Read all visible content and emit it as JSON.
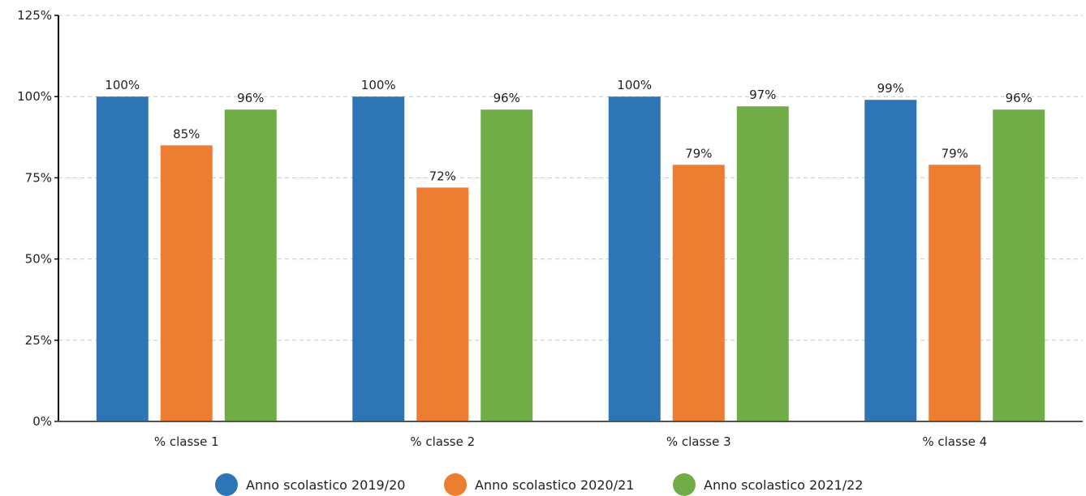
{
  "chart_data": {
    "type": "bar",
    "categories": [
      "% classe 1",
      "% classe 2",
      "% classe 3",
      "% classe 4"
    ],
    "series": [
      {
        "name": "Anno scolastico 2019/20",
        "color": "#2e75b6",
        "values": [
          100,
          100,
          100,
          99
        ],
        "labels": [
          "100%",
          "100%",
          "100%",
          "99%"
        ]
      },
      {
        "name": "Anno scolastico 2020/21",
        "color": "#ed7d31",
        "values": [
          85,
          72,
          79,
          79
        ],
        "labels": [
          "85%",
          "72%",
          "79%",
          "79%"
        ]
      },
      {
        "name": "Anno scolastico 2021/22",
        "color": "#70ad47",
        "values": [
          96,
          96,
          97,
          96
        ],
        "labels": [
          "96%",
          "96%",
          "97%",
          "96%"
        ]
      }
    ],
    "yticks": [
      0,
      25,
      50,
      75,
      100,
      125
    ],
    "ytick_labels": [
      "0%",
      "25%",
      "50%",
      "75%",
      "100%",
      "125%"
    ],
    "ylim": [
      0,
      125
    ],
    "grid": true,
    "legend_position": "bottom"
  }
}
